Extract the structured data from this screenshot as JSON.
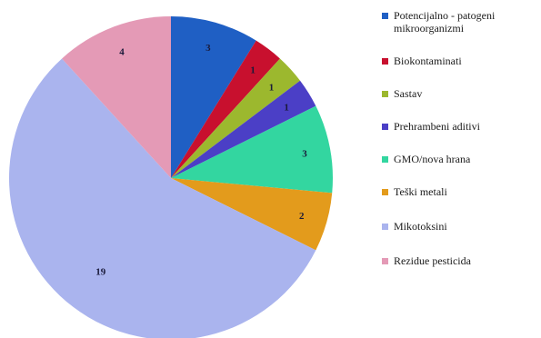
{
  "chart_data": {
    "type": "pie",
    "categories": [
      "Potencijalno - patogeni mikroorganizmi",
      "Biokontaminati",
      "Sastav",
      "Prehrambeni aditivi",
      "GMO/nova hrana",
      "Teški metali",
      "Mikotoksini",
      "Rezidue pesticida"
    ],
    "legend_lines": [
      [
        "Potencijalno - patogeni",
        "mikroorganizmi"
      ],
      [
        "Biokontaminati"
      ],
      [
        "Sastav"
      ],
      [
        "Prehrambeni aditivi"
      ],
      [
        "GMO/nova hrana"
      ],
      [
        "Teški metali"
      ],
      [
        "Mikotoksini"
      ],
      [
        "Rezidue pesticida"
      ]
    ],
    "values": [
      3,
      1,
      1,
      1,
      3,
      2,
      19,
      4
    ],
    "colors": [
      "#1f5fc4",
      "#c8102e",
      "#9cb82e",
      "#4b3fc6",
      "#33d6a0",
      "#e39b1c",
      "#aab4ee",
      "#e49ab6"
    ],
    "legend_position": "right",
    "start_angle_deg": 0,
    "direction": "clockwise"
  }
}
